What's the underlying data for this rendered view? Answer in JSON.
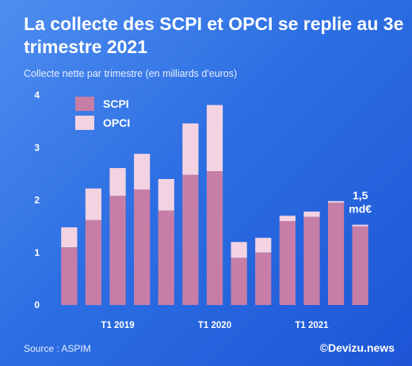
{
  "header": {
    "title": "La collecte des SCPI et OPCI se replie au 3e trimestre 2021",
    "subtitle": "Collecte nette par trimestre (en milliards d'euros)"
  },
  "footer": {
    "source": "Source : ASPIM",
    "brand": "©Devizu.news"
  },
  "colors": {
    "scpi": "#c77ea6",
    "opci": "#f3d3e1",
    "background": "#2d6fe3"
  },
  "chart_data": {
    "type": "bar",
    "stacked": true,
    "categories": [
      "",
      "",
      "T1 2019",
      "",
      "",
      "",
      "T1 2020",
      "",
      "",
      "",
      "T1 2021",
      "",
      ""
    ],
    "series": [
      {
        "name": "SCPI",
        "values": [
          1.1,
          1.62,
          2.08,
          2.2,
          1.8,
          2.48,
          2.55,
          0.9,
          1.0,
          1.6,
          1.68,
          1.95,
          1.5
        ]
      },
      {
        "name": "OPCI",
        "values": [
          0.38,
          0.6,
          0.53,
          0.68,
          0.6,
          0.98,
          1.26,
          0.3,
          0.28,
          0.1,
          0.1,
          0.03,
          0.03
        ]
      }
    ],
    "ylim": [
      0,
      4
    ],
    "yticks": [
      0,
      1,
      2,
      3,
      4
    ],
    "legend": "top-left",
    "annotation": {
      "lines": [
        "1,5",
        "md€"
      ],
      "bar_index": 12
    }
  }
}
